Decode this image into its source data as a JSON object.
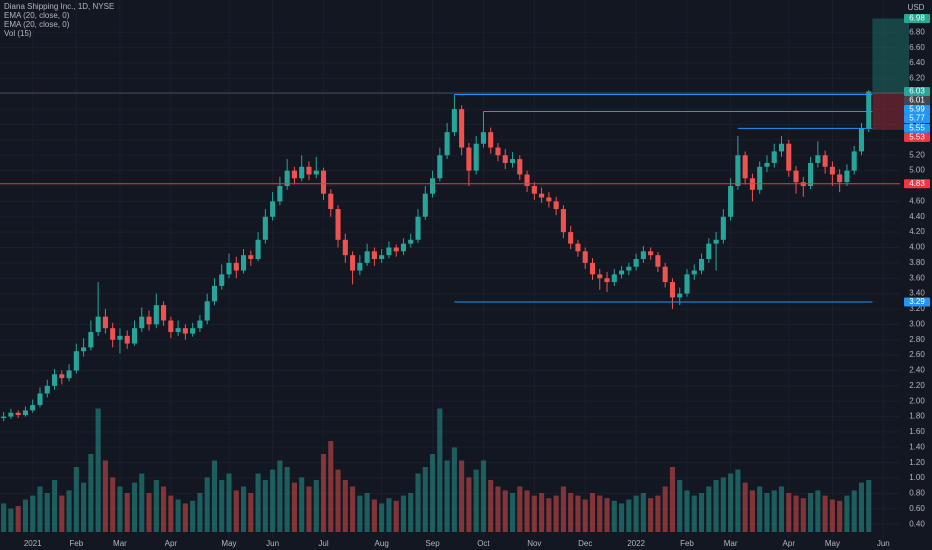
{
  "chart_data": {
    "type": "candlestick",
    "title": "Diana Shipping Inc., 1D, NYSE",
    "indicators": [
      "EMA (20, close, 0)",
      "EMA (20, close, 0)",
      "Vol (15)"
    ],
    "currency": "USD",
    "up_color": "#26a69a",
    "down_color": "#ef5350",
    "grid": true,
    "ylim": [
      0.22,
      7.22
    ],
    "xlim": [
      -0.5,
      123.3
    ],
    "volume_lim": [
      0,
      100
    ],
    "yticks": [
      {
        "value": 0.4,
        "label": "0.40"
      },
      {
        "value": 0.6,
        "label": "0.60"
      },
      {
        "value": 0.8,
        "label": "0.80"
      },
      {
        "value": 1.0,
        "label": "1.00"
      },
      {
        "value": 1.2,
        "label": "1.20"
      },
      {
        "value": 1.4,
        "label": "1.40"
      },
      {
        "value": 1.6,
        "label": "1.60"
      },
      {
        "value": 1.8,
        "label": "1.80"
      },
      {
        "value": 2.0,
        "label": "2.00"
      },
      {
        "value": 2.2,
        "label": "2.20"
      },
      {
        "value": 2.4,
        "label": "2.40"
      },
      {
        "value": 2.6,
        "label": "2.60"
      },
      {
        "value": 2.8,
        "label": "2.80"
      },
      {
        "value": 3.0,
        "label": "3.00"
      },
      {
        "value": 3.2,
        "label": "3.20"
      },
      {
        "value": 3.4,
        "label": "3.40"
      },
      {
        "value": 3.6,
        "label": "3.60"
      },
      {
        "value": 3.8,
        "label": "3.80"
      },
      {
        "value": 4.0,
        "label": "4.00"
      },
      {
        "value": 4.2,
        "label": "4.20"
      },
      {
        "value": 4.4,
        "label": "4.40"
      },
      {
        "value": 4.6,
        "label": "4.60"
      },
      {
        "value": 4.8,
        "label": "4.80"
      },
      {
        "value": 5.0,
        "label": "5.00"
      },
      {
        "value": 5.2,
        "label": "5.20"
      },
      {
        "value": 5.4,
        "label": "5.40"
      },
      {
        "value": 5.6,
        "label": "5.60"
      },
      {
        "value": 5.8,
        "label": "5.80"
      },
      {
        "value": 6.0,
        "label": "6.00"
      },
      {
        "value": 6.2,
        "label": "6.20"
      },
      {
        "value": 6.4,
        "label": "6.40"
      },
      {
        "value": 6.6,
        "label": "6.60"
      },
      {
        "value": 6.8,
        "label": "6.80"
      }
    ],
    "xticks": [
      {
        "value": 4,
        "label": "2021"
      },
      {
        "value": 10,
        "label": "Feb"
      },
      {
        "value": 16,
        "label": "Mar"
      },
      {
        "value": 23,
        "label": "Apr"
      },
      {
        "value": 31,
        "label": "May"
      },
      {
        "value": 37,
        "label": "Jun"
      },
      {
        "value": 44,
        "label": "Jul"
      },
      {
        "value": 52,
        "label": "Aug"
      },
      {
        "value": 59,
        "label": "Sep"
      },
      {
        "value": 66,
        "label": "Oct"
      },
      {
        "value": 73,
        "label": "Nov"
      },
      {
        "value": 80,
        "label": "Dec"
      },
      {
        "value": 87,
        "label": "2022"
      },
      {
        "value": 94,
        "label": "Feb"
      },
      {
        "value": 100,
        "label": "Mar"
      },
      {
        "value": 108,
        "label": "Apr"
      },
      {
        "value": 114,
        "label": "May"
      },
      {
        "value": 121,
        "label": "Jun"
      }
    ],
    "candles": [
      [
        1.78,
        1.86,
        1.74,
        1.8
      ],
      [
        1.8,
        1.9,
        1.77,
        1.85
      ],
      [
        1.85,
        1.88,
        1.78,
        1.82
      ],
      [
        1.82,
        1.93,
        1.8,
        1.88
      ],
      [
        1.88,
        2.02,
        1.85,
        1.95
      ],
      [
        1.95,
        2.18,
        1.92,
        2.1
      ],
      [
        2.1,
        2.28,
        2.05,
        2.2
      ],
      [
        2.2,
        2.42,
        2.15,
        2.35
      ],
      [
        2.35,
        2.4,
        2.22,
        2.3
      ],
      [
        2.3,
        2.48,
        2.26,
        2.4
      ],
      [
        2.4,
        2.75,
        2.36,
        2.65
      ],
      [
        2.65,
        2.82,
        2.58,
        2.7
      ],
      [
        2.7,
        3.05,
        2.66,
        2.9
      ],
      [
        2.9,
        3.55,
        2.85,
        3.1
      ],
      [
        3.1,
        3.2,
        2.88,
        2.95
      ],
      [
        2.95,
        3.02,
        2.7,
        2.8
      ],
      [
        2.8,
        2.95,
        2.62,
        2.85
      ],
      [
        2.85,
        2.92,
        2.68,
        2.75
      ],
      [
        2.75,
        3.05,
        2.72,
        2.95
      ],
      [
        2.95,
        3.22,
        2.9,
        3.1
      ],
      [
        3.1,
        3.18,
        2.92,
        3.0
      ],
      [
        3.0,
        3.4,
        2.95,
        3.25
      ],
      [
        3.25,
        3.3,
        2.98,
        3.05
      ],
      [
        3.05,
        3.1,
        2.82,
        2.9
      ],
      [
        2.9,
        3.05,
        2.85,
        2.95
      ],
      [
        2.95,
        3.0,
        2.8,
        2.88
      ],
      [
        2.88,
        3.02,
        2.84,
        2.95
      ],
      [
        2.95,
        3.12,
        2.9,
        3.05
      ],
      [
        3.05,
        3.4,
        3.0,
        3.3
      ],
      [
        3.3,
        3.6,
        3.25,
        3.5
      ],
      [
        3.5,
        3.78,
        3.45,
        3.65
      ],
      [
        3.65,
        3.92,
        3.6,
        3.8
      ],
      [
        3.8,
        3.88,
        3.6,
        3.7
      ],
      [
        3.7,
        3.98,
        3.66,
        3.9
      ],
      [
        3.9,
        3.96,
        3.76,
        3.85
      ],
      [
        3.85,
        4.2,
        3.82,
        4.1
      ],
      [
        4.1,
        4.5,
        4.05,
        4.4
      ],
      [
        4.4,
        4.72,
        4.35,
        4.6
      ],
      [
        4.6,
        4.92,
        4.55,
        4.8
      ],
      [
        4.8,
        5.15,
        4.75,
        5.0
      ],
      [
        5.0,
        5.05,
        4.82,
        4.9
      ],
      [
        4.9,
        5.2,
        4.86,
        5.05
      ],
      [
        5.05,
        5.12,
        4.88,
        4.95
      ],
      [
        4.95,
        5.18,
        4.9,
        5.0
      ],
      [
        5.0,
        5.04,
        4.62,
        4.7
      ],
      [
        4.7,
        4.76,
        4.4,
        4.5
      ],
      [
        4.5,
        4.55,
        4.0,
        4.1
      ],
      [
        4.1,
        4.18,
        3.8,
        3.9
      ],
      [
        3.9,
        3.95,
        3.52,
        3.7
      ],
      [
        3.7,
        3.9,
        3.64,
        3.8
      ],
      [
        3.8,
        4.05,
        3.76,
        3.95
      ],
      [
        3.95,
        4.0,
        3.76,
        3.85
      ],
      [
        3.85,
        3.98,
        3.8,
        3.9
      ],
      [
        3.9,
        4.08,
        3.86,
        4.0
      ],
      [
        4.0,
        4.04,
        3.88,
        3.95
      ],
      [
        3.95,
        4.12,
        3.9,
        4.05
      ],
      [
        4.05,
        4.18,
        4.0,
        4.1
      ],
      [
        4.1,
        4.5,
        4.06,
        4.4
      ],
      [
        4.4,
        4.8,
        4.36,
        4.7
      ],
      [
        4.7,
        5.0,
        4.65,
        4.9
      ],
      [
        4.9,
        5.3,
        4.86,
        5.2
      ],
      [
        5.2,
        5.62,
        5.15,
        5.5
      ],
      [
        5.5,
        5.99,
        5.45,
        5.8
      ],
      [
        5.8,
        5.85,
        5.2,
        5.3
      ],
      [
        5.3,
        5.36,
        4.8,
        5.0
      ],
      [
        5.0,
        5.45,
        4.95,
        5.35
      ],
      [
        5.35,
        5.77,
        5.3,
        5.5
      ],
      [
        5.5,
        5.56,
        5.22,
        5.3
      ],
      [
        5.3,
        5.36,
        5.12,
        5.2
      ],
      [
        5.2,
        5.28,
        5.02,
        5.1
      ],
      [
        5.1,
        5.24,
        5.04,
        5.15
      ],
      [
        5.15,
        5.2,
        4.88,
        4.95
      ],
      [
        4.95,
        5.0,
        4.72,
        4.8
      ],
      [
        4.8,
        4.85,
        4.62,
        4.7
      ],
      [
        4.7,
        4.78,
        4.58,
        4.65
      ],
      [
        4.65,
        4.72,
        4.52,
        4.6
      ],
      [
        4.6,
        4.66,
        4.42,
        4.5
      ],
      [
        4.5,
        4.55,
        4.12,
        4.2
      ],
      [
        4.2,
        4.28,
        3.98,
        4.05
      ],
      [
        4.05,
        4.1,
        3.88,
        3.95
      ],
      [
        3.95,
        4.0,
        3.72,
        3.8
      ],
      [
        3.8,
        3.86,
        3.58,
        3.65
      ],
      [
        3.65,
        3.72,
        3.45,
        3.6
      ],
      [
        3.6,
        3.68,
        3.42,
        3.55
      ],
      [
        3.55,
        3.72,
        3.5,
        3.65
      ],
      [
        3.65,
        3.76,
        3.6,
        3.7
      ],
      [
        3.7,
        3.8,
        3.64,
        3.75
      ],
      [
        3.75,
        3.92,
        3.7,
        3.85
      ],
      [
        3.85,
        4.02,
        3.8,
        3.95
      ],
      [
        3.95,
        4.0,
        3.84,
        3.9
      ],
      [
        3.9,
        3.94,
        3.68,
        3.75
      ],
      [
        3.75,
        3.8,
        3.48,
        3.55
      ],
      [
        3.55,
        3.6,
        3.2,
        3.35
      ],
      [
        3.35,
        3.48,
        3.25,
        3.4
      ],
      [
        3.4,
        3.72,
        3.36,
        3.65
      ],
      [
        3.65,
        3.78,
        3.58,
        3.7
      ],
      [
        3.7,
        3.92,
        3.65,
        3.85
      ],
      [
        3.85,
        4.12,
        3.8,
        4.05
      ],
      [
        4.05,
        4.2,
        3.7,
        4.1
      ],
      [
        4.1,
        4.5,
        4.05,
        4.4
      ],
      [
        4.4,
        4.9,
        4.35,
        4.8
      ],
      [
        4.8,
        5.45,
        4.75,
        5.2
      ],
      [
        5.2,
        5.25,
        4.82,
        4.9
      ],
      [
        4.9,
        4.96,
        4.6,
        4.75
      ],
      [
        4.75,
        5.12,
        4.7,
        5.05
      ],
      [
        5.05,
        5.2,
        4.98,
        5.1
      ],
      [
        5.1,
        5.35,
        5.04,
        5.25
      ],
      [
        5.25,
        5.45,
        5.18,
        5.35
      ],
      [
        5.35,
        5.4,
        4.92,
        5.0
      ],
      [
        5.0,
        5.06,
        4.7,
        4.85
      ],
      [
        4.85,
        4.92,
        4.66,
        4.8
      ],
      [
        4.8,
        5.18,
        4.76,
        5.1
      ],
      [
        5.1,
        5.38,
        5.04,
        5.2
      ],
      [
        5.2,
        5.26,
        4.96,
        5.05
      ],
      [
        5.05,
        5.12,
        4.8,
        4.95
      ],
      [
        4.95,
        5.02,
        4.72,
        4.85
      ],
      [
        4.85,
        5.08,
        4.8,
        5.0
      ],
      [
        5.0,
        5.32,
        4.95,
        5.25
      ],
      [
        5.25,
        5.62,
        5.2,
        5.55
      ],
      [
        5.55,
        6.05,
        5.5,
        6.03
      ]
    ],
    "volume": [
      22,
      18,
      20,
      25,
      28,
      35,
      30,
      40,
      28,
      32,
      50,
      38,
      60,
      95,
      55,
      42,
      35,
      30,
      38,
      45,
      30,
      40,
      35,
      28,
      25,
      22,
      24,
      30,
      42,
      55,
      40,
      45,
      32,
      35,
      30,
      45,
      40,
      48,
      55,
      50,
      38,
      42,
      35,
      40,
      60,
      70,
      48,
      40,
      35,
      28,
      30,
      25,
      22,
      26,
      24,
      28,
      30,
      45,
      50,
      60,
      95,
      55,
      65,
      55,
      42,
      48,
      55,
      40,
      35,
      32,
      30,
      35,
      32,
      28,
      30,
      26,
      28,
      35,
      30,
      28,
      25,
      30,
      28,
      26,
      24,
      22,
      25,
      28,
      30,
      26,
      28,
      35,
      50,
      40,
      32,
      28,
      30,
      35,
      40,
      42,
      45,
      48,
      38,
      32,
      35,
      30,
      32,
      35,
      30,
      28,
      26,
      30,
      32,
      28,
      25,
      24,
      28,
      32,
      38,
      40
    ],
    "levels": [
      {
        "value": 5.99,
        "color": "#2196f3",
        "from": 62
      },
      {
        "value": 5.77,
        "color": "#2196f3",
        "from": 66
      },
      {
        "value": 5.55,
        "color": "#2196f3",
        "from": 101
      },
      {
        "value": 4.83,
        "color": "#f23645"
      },
      {
        "value": 3.29,
        "color": "#2196f3",
        "from": 62
      }
    ],
    "position": {
      "target": 6.98,
      "entry": 6.01,
      "stop": 5.53,
      "from": 119,
      "target_color": "#22ab94",
      "entry_color": "#434651",
      "stop_color": "#f23645"
    }
  }
}
